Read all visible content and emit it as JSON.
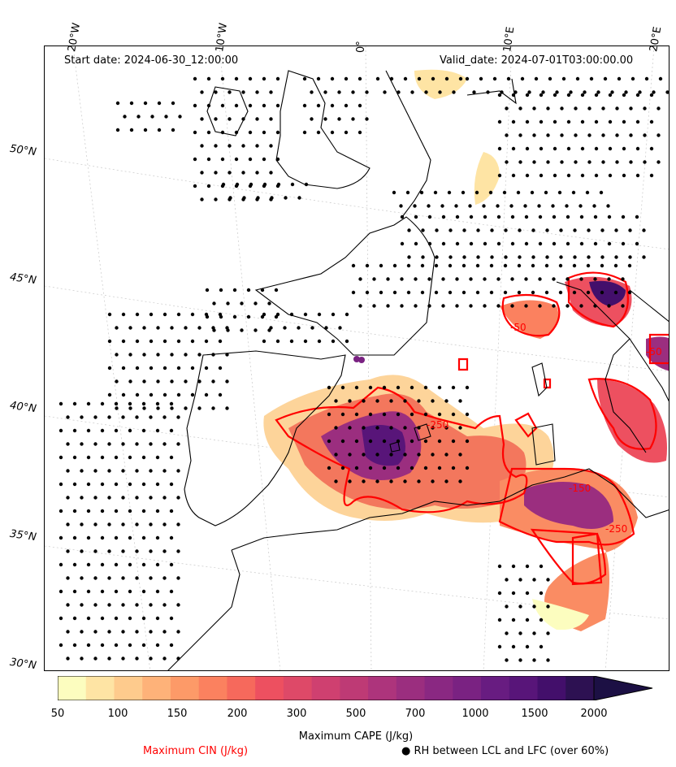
{
  "header": {
    "start_date": "Start date: 2024-06-30_12:00:00",
    "valid_date": "Valid_date: 2024-07-01T03:00:00.00"
  },
  "map": {
    "longitude_labels": [
      "20°W",
      "10°W",
      "0°",
      "10°E",
      "20°E"
    ],
    "latitude_labels": [
      "50°N",
      "45°N",
      "40°N",
      "35°N",
      "30°N"
    ],
    "fill_variable": "Maximum CAPE",
    "contour_variable": "Maximum CIN",
    "contour_labels": [
      "-50",
      "-250",
      "-150",
      "-250",
      "-50"
    ],
    "dot_variable": "RH between LCL and LFC",
    "colors": {
      "coastline": "#000000",
      "cin_contour": "#ff0000",
      "dots": "#000000"
    }
  },
  "colorbar": {
    "title": "Maximum CAPE (J/kg)",
    "tick_labels": [
      "50",
      "100",
      "150",
      "200",
      "300",
      "500",
      "700",
      "1000",
      "1500",
      "2000"
    ],
    "colors": [
      "#fcfdbf",
      "#fee4a4",
      "#fecb8d",
      "#feb279",
      "#fd9a68",
      "#fb815f",
      "#f6695c",
      "#ed5060",
      "#de4968",
      "#cf4070",
      "#be3a75",
      "#ad347c",
      "#9b2e7f",
      "#8a2882",
      "#7a2282",
      "#681c81",
      "#581579",
      "#430f6b",
      "#2d1152",
      "#1c1044"
    ],
    "extend": "max"
  },
  "legend": {
    "cin_label": "Maximum CIN (J/kg)",
    "rh_label": "● RH between LCL and LFC (over 60%)"
  }
}
